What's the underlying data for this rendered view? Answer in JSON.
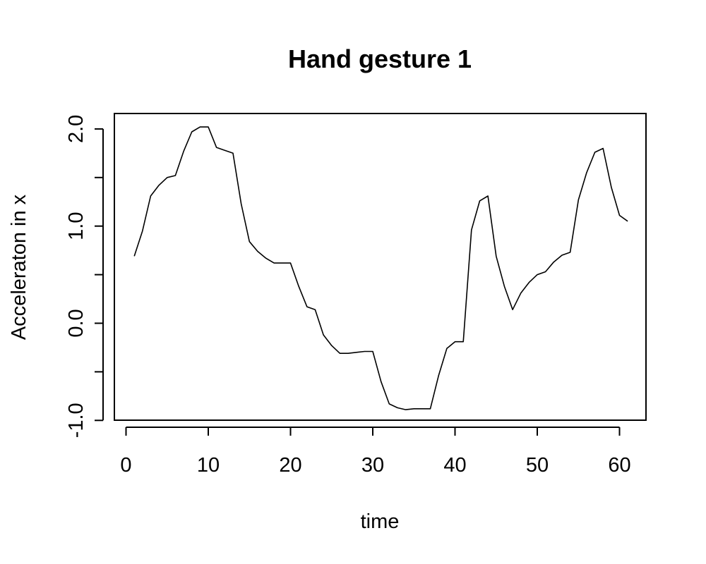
{
  "chart_data": {
    "type": "line",
    "title": "Hand gesture 1",
    "xlabel": "time",
    "ylabel": "Acceleraton in x",
    "xlim": [
      0,
      61
    ],
    "ylim": [
      -1.0,
      2.0
    ],
    "x_ticks": [
      0,
      10,
      20,
      30,
      40,
      50,
      60
    ],
    "y_ticks": [
      -1.0,
      0.0,
      1.0,
      2.0
    ],
    "x_tick_labels": [
      "0",
      "10",
      "20",
      "30",
      "40",
      "50",
      "60"
    ],
    "y_tick_labels": [
      "-1.0",
      "0.0",
      "1.0",
      "2.0"
    ],
    "y_minor_ticks": [
      -0.5,
      0.5,
      1.5
    ],
    "grid": false,
    "series": [
      {
        "color": "#000000",
        "x": [
          1,
          2,
          3,
          4,
          5,
          6,
          7,
          8,
          9,
          10,
          11,
          12,
          13,
          14,
          15,
          16,
          17,
          18,
          19,
          20,
          21,
          22,
          23,
          24,
          25,
          26,
          27,
          28,
          29,
          30,
          31,
          32,
          33,
          34,
          35,
          36,
          37,
          38,
          39,
          40,
          41,
          42,
          43,
          44,
          45,
          46,
          47,
          48,
          49,
          50,
          51,
          52,
          53,
          54,
          55,
          56,
          57,
          58,
          59,
          60,
          61
        ],
        "values": [
          0.69,
          0.95,
          1.31,
          1.42,
          1.5,
          1.52,
          1.77,
          1.97,
          2.02,
          2.02,
          1.81,
          1.78,
          1.75,
          1.23,
          0.84,
          0.74,
          0.67,
          0.62,
          0.62,
          0.62,
          0.38,
          0.17,
          0.14,
          -0.12,
          -0.23,
          -0.31,
          -0.31,
          -0.3,
          -0.29,
          -0.29,
          -0.6,
          -0.83,
          -0.87,
          -0.89,
          -0.88,
          -0.88,
          -0.88,
          -0.54,
          -0.26,
          -0.19,
          -0.19,
          0.96,
          1.26,
          1.31,
          0.69,
          0.38,
          0.14,
          0.31,
          0.42,
          0.5,
          0.53,
          0.63,
          0.7,
          0.73,
          1.27,
          1.55,
          1.76,
          1.8,
          1.4,
          1.11,
          1.05
        ]
      }
    ]
  }
}
